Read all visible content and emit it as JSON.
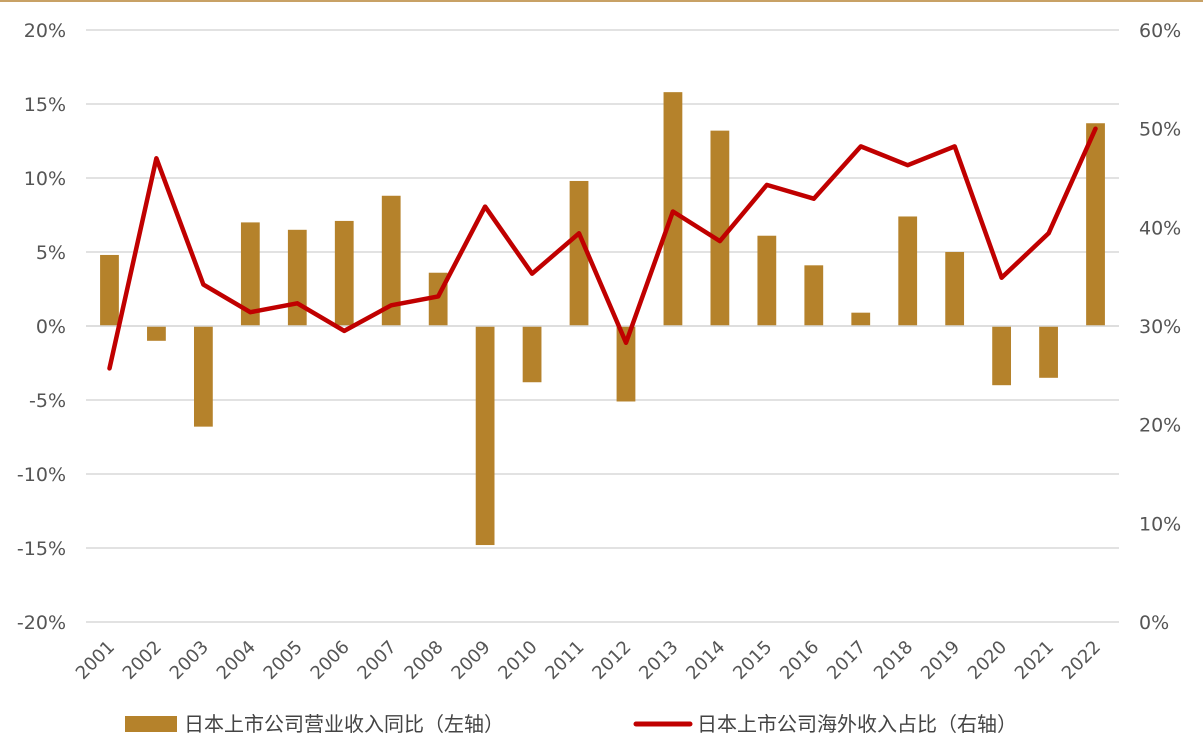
{
  "chart_data": {
    "type": "bar+line",
    "categories": [
      "2001",
      "2002",
      "2003",
      "2004",
      "2005",
      "2006",
      "2007",
      "2008",
      "2009",
      "2010",
      "2011",
      "2012",
      "2013",
      "2014",
      "2015",
      "2016",
      "2017",
      "2018",
      "2019",
      "2020",
      "2021",
      "2022"
    ],
    "series": [
      {
        "name": "日本上市公司营业收入同比（左轴）",
        "type": "bar",
        "axis": "left",
        "color": "#b5822b",
        "values": [
          4.8,
          -1.0,
          -6.8,
          7.0,
          6.5,
          7.1,
          8.8,
          3.6,
          -14.8,
          -3.8,
          9.8,
          -5.1,
          15.8,
          13.2,
          6.1,
          4.1,
          0.9,
          7.4,
          5.0,
          -4.0,
          -3.5,
          13.7
        ]
      },
      {
        "name": "日本上市公司海外收入占比（右轴）",
        "type": "line",
        "axis": "right",
        "color": "#c00000",
        "values": [
          25.7,
          47.0,
          34.2,
          31.4,
          32.3,
          29.5,
          32.1,
          33.0,
          42.1,
          35.3,
          39.4,
          28.3,
          41.6,
          38.6,
          44.3,
          42.9,
          48.2,
          46.3,
          48.2,
          34.9,
          39.4,
          50.0
        ]
      }
    ],
    "y_left": {
      "min": -20,
      "max": 20,
      "step": 5,
      "ticks": [
        "-20%",
        "-15%",
        "-10%",
        "-5%",
        "0%",
        "5%",
        "10%",
        "15%",
        "20%"
      ]
    },
    "y_right": {
      "min": 0,
      "max": 60,
      "step": 10,
      "ticks": [
        "0%",
        "10%",
        "20%",
        "30%",
        "40%",
        "50%",
        "60%"
      ]
    },
    "grid": true,
    "legend": "bottom"
  }
}
